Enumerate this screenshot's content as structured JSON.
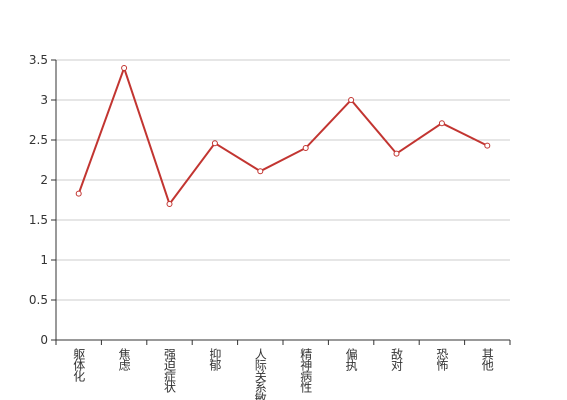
{
  "chart_data": {
    "type": "line",
    "categories": [
      "躯体化",
      "焦虑",
      "强迫症状",
      "抑郁",
      "人际关系敏感",
      "精神病性",
      "偏执",
      "敌对",
      "恐怖",
      "其他"
    ],
    "values": [
      1.83,
      3.4,
      1.7,
      2.46,
      2.11,
      2.4,
      3.0,
      2.33,
      2.71,
      2.43
    ],
    "color": "#c23531",
    "ylim": [
      0,
      3.5
    ],
    "yticks": [
      0,
      0.5,
      1,
      1.5,
      2,
      2.5,
      3,
      3.5
    ],
    "grid": true
  }
}
